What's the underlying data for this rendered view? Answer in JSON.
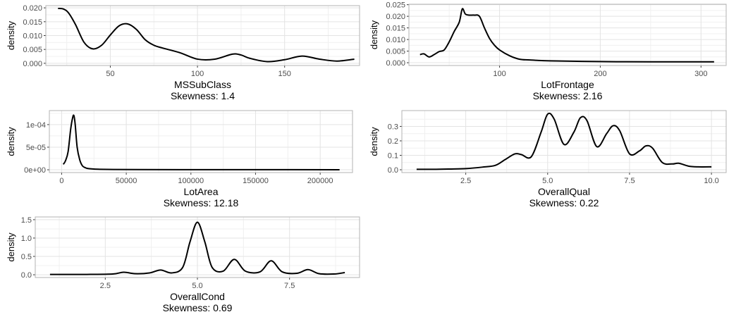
{
  "chart_data": [
    {
      "type": "line",
      "xlabel": "MSSubClass",
      "subtitle": "Skewness: 1.4",
      "ylabel": "density",
      "xlim": [
        13,
        193
      ],
      "ylim": [
        -0.0008,
        0.0208
      ],
      "xticks": [
        {
          "v": 50,
          "label": "50"
        },
        {
          "v": 100,
          "label": "100"
        },
        {
          "v": 150,
          "label": "150"
        }
      ],
      "yticks": [
        {
          "v": 0,
          "label": "0.000"
        },
        {
          "v": 0.005,
          "label": "0.005"
        },
        {
          "v": 0.01,
          "label": "0.010"
        },
        {
          "v": 0.015,
          "label": "0.015"
        },
        {
          "v": 0.02,
          "label": "0.020"
        }
      ],
      "grid": true,
      "series": [
        {
          "x": [
            20,
            23,
            26,
            30,
            35,
            40,
            45,
            50,
            55,
            60,
            65,
            70,
            75,
            80,
            90,
            100,
            110,
            120,
            125,
            130,
            140,
            150,
            160,
            170,
            180,
            190
          ],
          "y": [
            0.0198,
            0.0196,
            0.0182,
            0.014,
            0.0075,
            0.0052,
            0.0065,
            0.0102,
            0.0135,
            0.0142,
            0.0122,
            0.0085,
            0.0065,
            0.0055,
            0.0038,
            0.0015,
            0.0015,
            0.0033,
            0.003,
            0.0018,
            0.0006,
            0.0013,
            0.0026,
            0.0015,
            0.0008,
            0.0015
          ]
        }
      ]
    },
    {
      "type": "line",
      "xlabel": "LotFrontage",
      "subtitle": "Skewness: 2.16",
      "ylabel": "density",
      "xlim": [
        10,
        325
      ],
      "ylim": [
        -0.0012,
        0.0252
      ],
      "xticks": [
        {
          "v": 100,
          "label": "100"
        },
        {
          "v": 200,
          "label": "200"
        },
        {
          "v": 300,
          "label": "300"
        }
      ],
      "yticks": [
        {
          "v": 0,
          "label": "0.000"
        },
        {
          "v": 0.005,
          "label": "0.005"
        },
        {
          "v": 0.01,
          "label": "0.010"
        },
        {
          "v": 0.015,
          "label": "0.015"
        },
        {
          "v": 0.02,
          "label": "0.020"
        },
        {
          "v": 0.025,
          "label": "0.025"
        }
      ],
      "grid": true,
      "series": [
        {
          "x": [
            21,
            25,
            30,
            35,
            40,
            45,
            50,
            55,
            60,
            63,
            66,
            70,
            75,
            80,
            85,
            90,
            95,
            100,
            110,
            120,
            130,
            150,
            200,
            250,
            313
          ],
          "y": [
            0.0035,
            0.0038,
            0.0025,
            0.0035,
            0.0048,
            0.0055,
            0.009,
            0.0135,
            0.0175,
            0.0232,
            0.021,
            0.0205,
            0.0205,
            0.02,
            0.015,
            0.0105,
            0.0075,
            0.0055,
            0.003,
            0.0015,
            0.0012,
            0.0008,
            0.0005,
            0.0004,
            0.0004
          ]
        }
      ]
    },
    {
      "type": "line",
      "xlabel": "LotArea",
      "subtitle": "Skewness: 12.18",
      "ylabel": "density",
      "xlim": [
        -9500,
        225000
      ],
      "ylim": [
        -6.2e-06,
        0.000131
      ],
      "xticks": [
        {
          "v": 0,
          "label": "0"
        },
        {
          "v": 50000,
          "label": "50000"
        },
        {
          "v": 100000,
          "label": "100000"
        },
        {
          "v": 150000,
          "label": "150000"
        },
        {
          "v": 200000,
          "label": "200000"
        }
      ],
      "yticks": [
        {
          "v": 0,
          "label": "0e+00"
        },
        {
          "v": 5e-05,
          "label": "5e-05"
        },
        {
          "v": 0.0001,
          "label": "1e-04"
        }
      ],
      "grid": true,
      "series": [
        {
          "x": [
            1300,
            3000,
            5000,
            7000,
            8500,
            9500,
            10500,
            12000,
            14000,
            16000,
            18000,
            20000,
            25000,
            30000,
            40000,
            60000,
            100000,
            150000,
            215000
          ],
          "y": [
            1.2e-05,
            2e-05,
            4e-05,
            9e-05,
            0.000115,
            0.00012,
            0.0001,
            5e-05,
            2.2e-05,
            9e-06,
            5e-06,
            3e-06,
            1.5e-06,
            1e-06,
            7e-07,
            4e-07,
            2e-07,
            2e-07,
            1e-07
          ]
        }
      ]
    },
    {
      "type": "line",
      "xlabel": "OverallQual",
      "subtitle": "Skewness: 0.22",
      "ylabel": "density",
      "xlim": [
        0.55,
        10.45
      ],
      "ylim": [
        -0.0195,
        0.4095
      ],
      "xticks": [
        {
          "v": 2.5,
          "label": "2.5"
        },
        {
          "v": 5,
          "label": "5.0"
        },
        {
          "v": 7.5,
          "label": "7.5"
        },
        {
          "v": 10,
          "label": "10.0"
        }
      ],
      "yticks": [
        {
          "v": 0,
          "label": "0.0"
        },
        {
          "v": 0.1,
          "label": "0.1"
        },
        {
          "v": 0.2,
          "label": "0.2"
        },
        {
          "v": 0.3,
          "label": "0.3"
        }
      ],
      "grid": true,
      "series": [
        {
          "x": [
            1,
            1.5,
            2,
            2.5,
            3,
            3.4,
            3.7,
            4,
            4.2,
            4.5,
            4.8,
            5,
            5.2,
            5.5,
            5.8,
            6,
            6.2,
            6.5,
            6.8,
            7,
            7.2,
            7.5,
            7.8,
            8,
            8.2,
            8.5,
            8.8,
            9,
            9.3,
            9.6,
            10
          ],
          "y": [
            0.003,
            0.003,
            0.005,
            0.008,
            0.018,
            0.03,
            0.07,
            0.11,
            0.105,
            0.09,
            0.26,
            0.385,
            0.35,
            0.175,
            0.26,
            0.36,
            0.34,
            0.16,
            0.25,
            0.305,
            0.27,
            0.11,
            0.13,
            0.165,
            0.15,
            0.05,
            0.04,
            0.045,
            0.025,
            0.02,
            0.02
          ]
        }
      ]
    },
    {
      "type": "line",
      "xlabel": "OverallCond",
      "subtitle": "Skewness: 0.69",
      "ylabel": "density",
      "xlim": [
        0.6,
        9.4
      ],
      "ylim": [
        -0.075,
        1.575
      ],
      "xticks": [
        {
          "v": 2.5,
          "label": "2.5"
        },
        {
          "v": 5,
          "label": "5.0"
        },
        {
          "v": 7.5,
          "label": "7.5"
        }
      ],
      "yticks": [
        {
          "v": 0,
          "label": "0.0"
        },
        {
          "v": 0.5,
          "label": "0.5"
        },
        {
          "v": 1,
          "label": "1.0"
        },
        {
          "v": 1.5,
          "label": "1.5"
        }
      ],
      "grid": true,
      "series": [
        {
          "x": [
            1,
            2,
            2.7,
            3,
            3.3,
            3.7,
            4,
            4.3,
            4.6,
            4.8,
            5,
            5.2,
            5.4,
            5.7,
            6,
            6.3,
            6.7,
            7,
            7.3,
            7.7,
            8,
            8.3,
            8.7,
            9
          ],
          "y": [
            0.01,
            0.01,
            0.02,
            0.07,
            0.03,
            0.05,
            0.13,
            0.05,
            0.2,
            0.9,
            1.43,
            0.9,
            0.2,
            0.1,
            0.42,
            0.1,
            0.08,
            0.38,
            0.08,
            0.04,
            0.14,
            0.03,
            0.02,
            0.06
          ]
        }
      ]
    }
  ]
}
